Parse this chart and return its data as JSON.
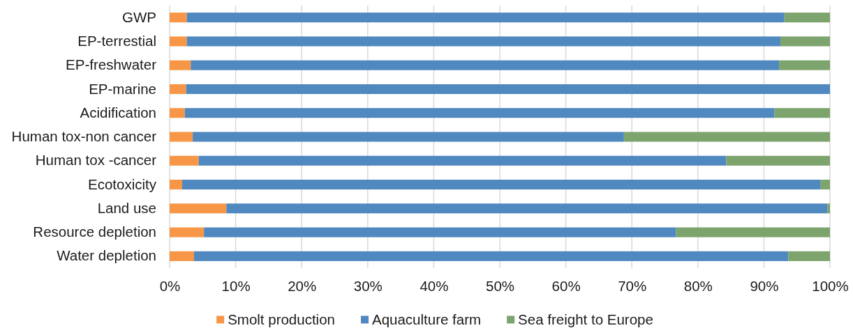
{
  "chart_data": {
    "type": "bar",
    "orientation": "horizontal",
    "stacked": true,
    "categories": [
      "GWP",
      "EP-terrestial",
      "EP-freshwater",
      "EP-marine",
      "Acidification",
      "Human tox-non cancer",
      "Human tox -cancer",
      "Ecotoxicity",
      "Land use",
      "Resource depletion",
      "Water depletion"
    ],
    "series": [
      {
        "name": "Smolt production",
        "color": "#f79646",
        "values": [
          2.6,
          2.6,
          3.2,
          2.5,
          2.3,
          3.5,
          4.4,
          1.9,
          8.6,
          5.2,
          3.7
        ]
      },
      {
        "name": "Aquaculture farm",
        "color": "#5088c0",
        "values": [
          90.5,
          89.9,
          89.1,
          97.5,
          89.3,
          65.3,
          79.9,
          96.7,
          91.0,
          71.5,
          90.0
        ]
      },
      {
        "name": "Sea freight to Europe",
        "color": "#7da46c",
        "values": [
          6.9,
          7.5,
          7.7,
          0,
          8.4,
          31.2,
          15.7,
          1.4,
          0.4,
          23.3,
          6.3
        ]
      }
    ],
    "xlim": [
      0,
      100
    ],
    "xticks": [
      {
        "value": 0,
        "label": "0%"
      },
      {
        "value": 10,
        "label": "10%"
      },
      {
        "value": 20,
        "label": "20%"
      },
      {
        "value": 30,
        "label": "30%"
      },
      {
        "value": 40,
        "label": "40%"
      },
      {
        "value": 50,
        "label": "50%"
      },
      {
        "value": 60,
        "label": "60%"
      },
      {
        "value": 70,
        "label": "70%"
      },
      {
        "value": 80,
        "label": "80%"
      },
      {
        "value": 90,
        "label": "90%"
      },
      {
        "value": 100,
        "label": "100%"
      }
    ],
    "grid": "x",
    "legend": "bottom"
  }
}
